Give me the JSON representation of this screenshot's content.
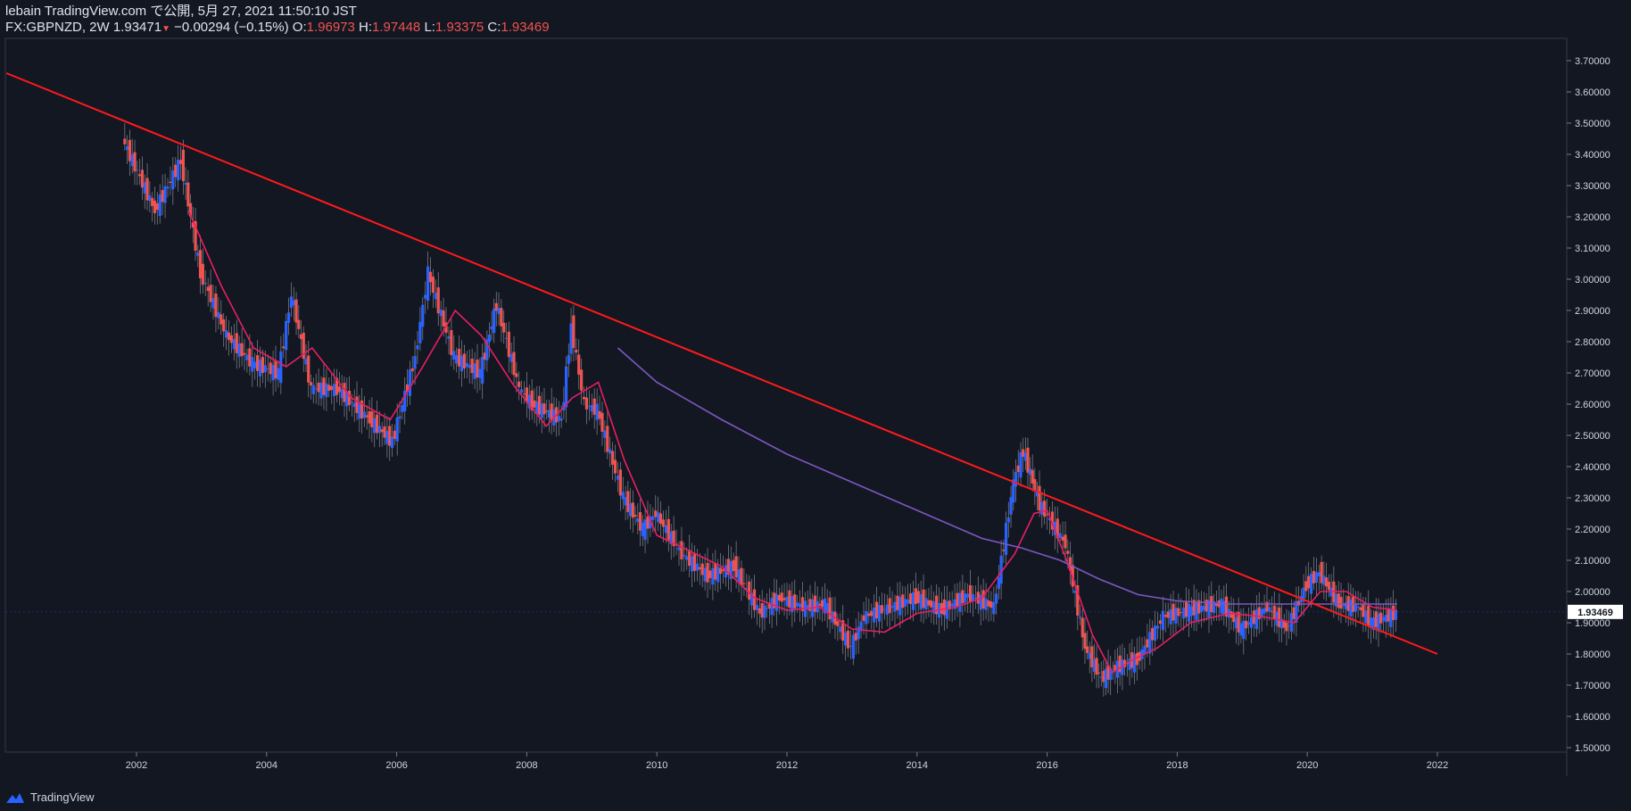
{
  "header": {
    "line1": "lebain TradingView.com で公開, 5月 27, 2021 11:50:10 JST",
    "symbol": "FX:GBPNZD, 2W",
    "last": "1.93471",
    "change": "−0.00294 (−0.15%)",
    "o_label": "O:",
    "o": "1.96973",
    "h_label": "H:",
    "h": "1.97448",
    "l_label": "L:",
    "l": "1.93375",
    "c_label": "C:",
    "c": "1.93469",
    "down_arrow": "▼"
  },
  "price_badge": "1.93469",
  "footer": {
    "brand": "TradingView",
    "logo_icon": "tradingview-logo-icon"
  },
  "colors": {
    "bg": "#131722",
    "up": "#2962ff",
    "down": "#ef5350",
    "ma_fast": "#e91e63",
    "ma_slow": "#7e57c2",
    "trendline": "#ff1a1a"
  },
  "chart_data": {
    "type": "line",
    "title": "FX:GBPNZD, 2W",
    "xlabel": "",
    "ylabel": "",
    "xlim": [
      2000.0,
      2022.0
    ],
    "ylim": [
      1.5,
      3.7
    ],
    "x_ticks": [
      "2002",
      "2004",
      "2006",
      "2008",
      "2010",
      "2012",
      "2014",
      "2016",
      "2018",
      "2020",
      "2022"
    ],
    "y_ticks": [
      "3.70000",
      "3.60000",
      "3.50000",
      "3.40000",
      "3.30000",
      "3.20000",
      "3.10000",
      "3.00000",
      "2.90000",
      "2.80000",
      "2.70000",
      "2.60000",
      "2.50000",
      "2.40000",
      "2.30000",
      "2.20000",
      "2.10000",
      "2.00000",
      "1.90000",
      "1.80000",
      "1.70000",
      "1.60000",
      "1.50000"
    ],
    "series": [
      {
        "name": "",
        "kind": "price",
        "x": [
          2001.8,
          2002.3,
          2002.7,
          2003.0,
          2003.4,
          2003.8,
          2004.2,
          2004.4,
          2004.7,
          2005.1,
          2005.6,
          2005.95,
          2006.3,
          2006.5,
          2006.9,
          2007.3,
          2007.55,
          2007.9,
          2008.1,
          2008.55,
          2008.7,
          2008.9,
          2009.1,
          2009.5,
          2009.8,
          2010.0,
          2010.4,
          2010.8,
          2011.2,
          2011.6,
          2011.9,
          2012.3,
          2012.6,
          2013.0,
          2013.2,
          2013.6,
          2014.0,
          2014.4,
          2014.8,
          2015.2,
          2015.5,
          2015.65,
          2015.9,
          2016.3,
          2016.6,
          2016.85,
          2017.1,
          2017.4,
          2017.8,
          2018.2,
          2018.7,
          2019.0,
          2019.4,
          2019.7,
          2020.0,
          2020.2,
          2020.5,
          2020.8,
          2021.0,
          2021.38
        ],
        "y": [
          3.45,
          3.22,
          3.38,
          3.02,
          2.82,
          2.73,
          2.7,
          2.95,
          2.65,
          2.65,
          2.55,
          2.48,
          2.75,
          3.02,
          2.75,
          2.7,
          2.92,
          2.65,
          2.6,
          2.55,
          2.85,
          2.6,
          2.58,
          2.3,
          2.2,
          2.25,
          2.12,
          2.05,
          2.08,
          1.93,
          1.98,
          1.95,
          1.96,
          1.82,
          1.92,
          1.95,
          1.98,
          1.94,
          1.99,
          1.95,
          2.35,
          2.45,
          2.28,
          2.15,
          1.82,
          1.72,
          1.76,
          1.78,
          1.92,
          1.94,
          1.96,
          1.88,
          1.95,
          1.88,
          2.02,
          2.06,
          1.96,
          1.95,
          1.9,
          1.93
        ]
      },
      {
        "name": "",
        "kind": "ma_fast",
        "x": [
          2002.8,
          2003.3,
          2003.8,
          2004.3,
          2004.7,
          2005.3,
          2005.9,
          2006.4,
          2006.9,
          2007.3,
          2007.8,
          2008.3,
          2008.7,
          2009.1,
          2009.5,
          2010.0,
          2010.4,
          2011.0,
          2011.5,
          2012.0,
          2012.5,
          2013.0,
          2013.5,
          2014.0,
          2014.6,
          2015.0,
          2015.5,
          2015.8,
          2016.0,
          2016.3,
          2016.7,
          2017.0,
          2017.3,
          2017.7,
          2018.2,
          2018.8,
          2019.3,
          2019.8,
          2020.2,
          2020.6,
          2021.0,
          2021.38
        ],
        "y": [
          3.22,
          2.98,
          2.78,
          2.72,
          2.78,
          2.62,
          2.55,
          2.72,
          2.9,
          2.82,
          2.66,
          2.53,
          2.62,
          2.67,
          2.42,
          2.18,
          2.14,
          2.08,
          1.98,
          1.94,
          1.95,
          1.88,
          1.87,
          1.93,
          1.95,
          1.98,
          2.12,
          2.25,
          2.26,
          2.1,
          1.86,
          1.74,
          1.78,
          1.82,
          1.9,
          1.93,
          1.92,
          1.9,
          2.0,
          2.0,
          1.95,
          1.94
        ]
      },
      {
        "name": "",
        "kind": "ma_slow",
        "x": [
          2009.4,
          2010.0,
          2011.0,
          2012.0,
          2013.0,
          2014.0,
          2015.0,
          2015.6,
          2016.2,
          2016.8,
          2017.4,
          2018.0,
          2018.8,
          2019.6,
          2020.4,
          2021.38
        ],
        "y": [
          2.78,
          2.67,
          2.55,
          2.44,
          2.35,
          2.26,
          2.17,
          2.14,
          2.1,
          2.04,
          1.99,
          1.97,
          1.96,
          1.96,
          1.96,
          1.96
        ]
      },
      {
        "name": "",
        "kind": "trendline",
        "x": [
          2000.0,
          2022.0
        ],
        "y": [
          3.66,
          1.8
        ]
      }
    ]
  }
}
